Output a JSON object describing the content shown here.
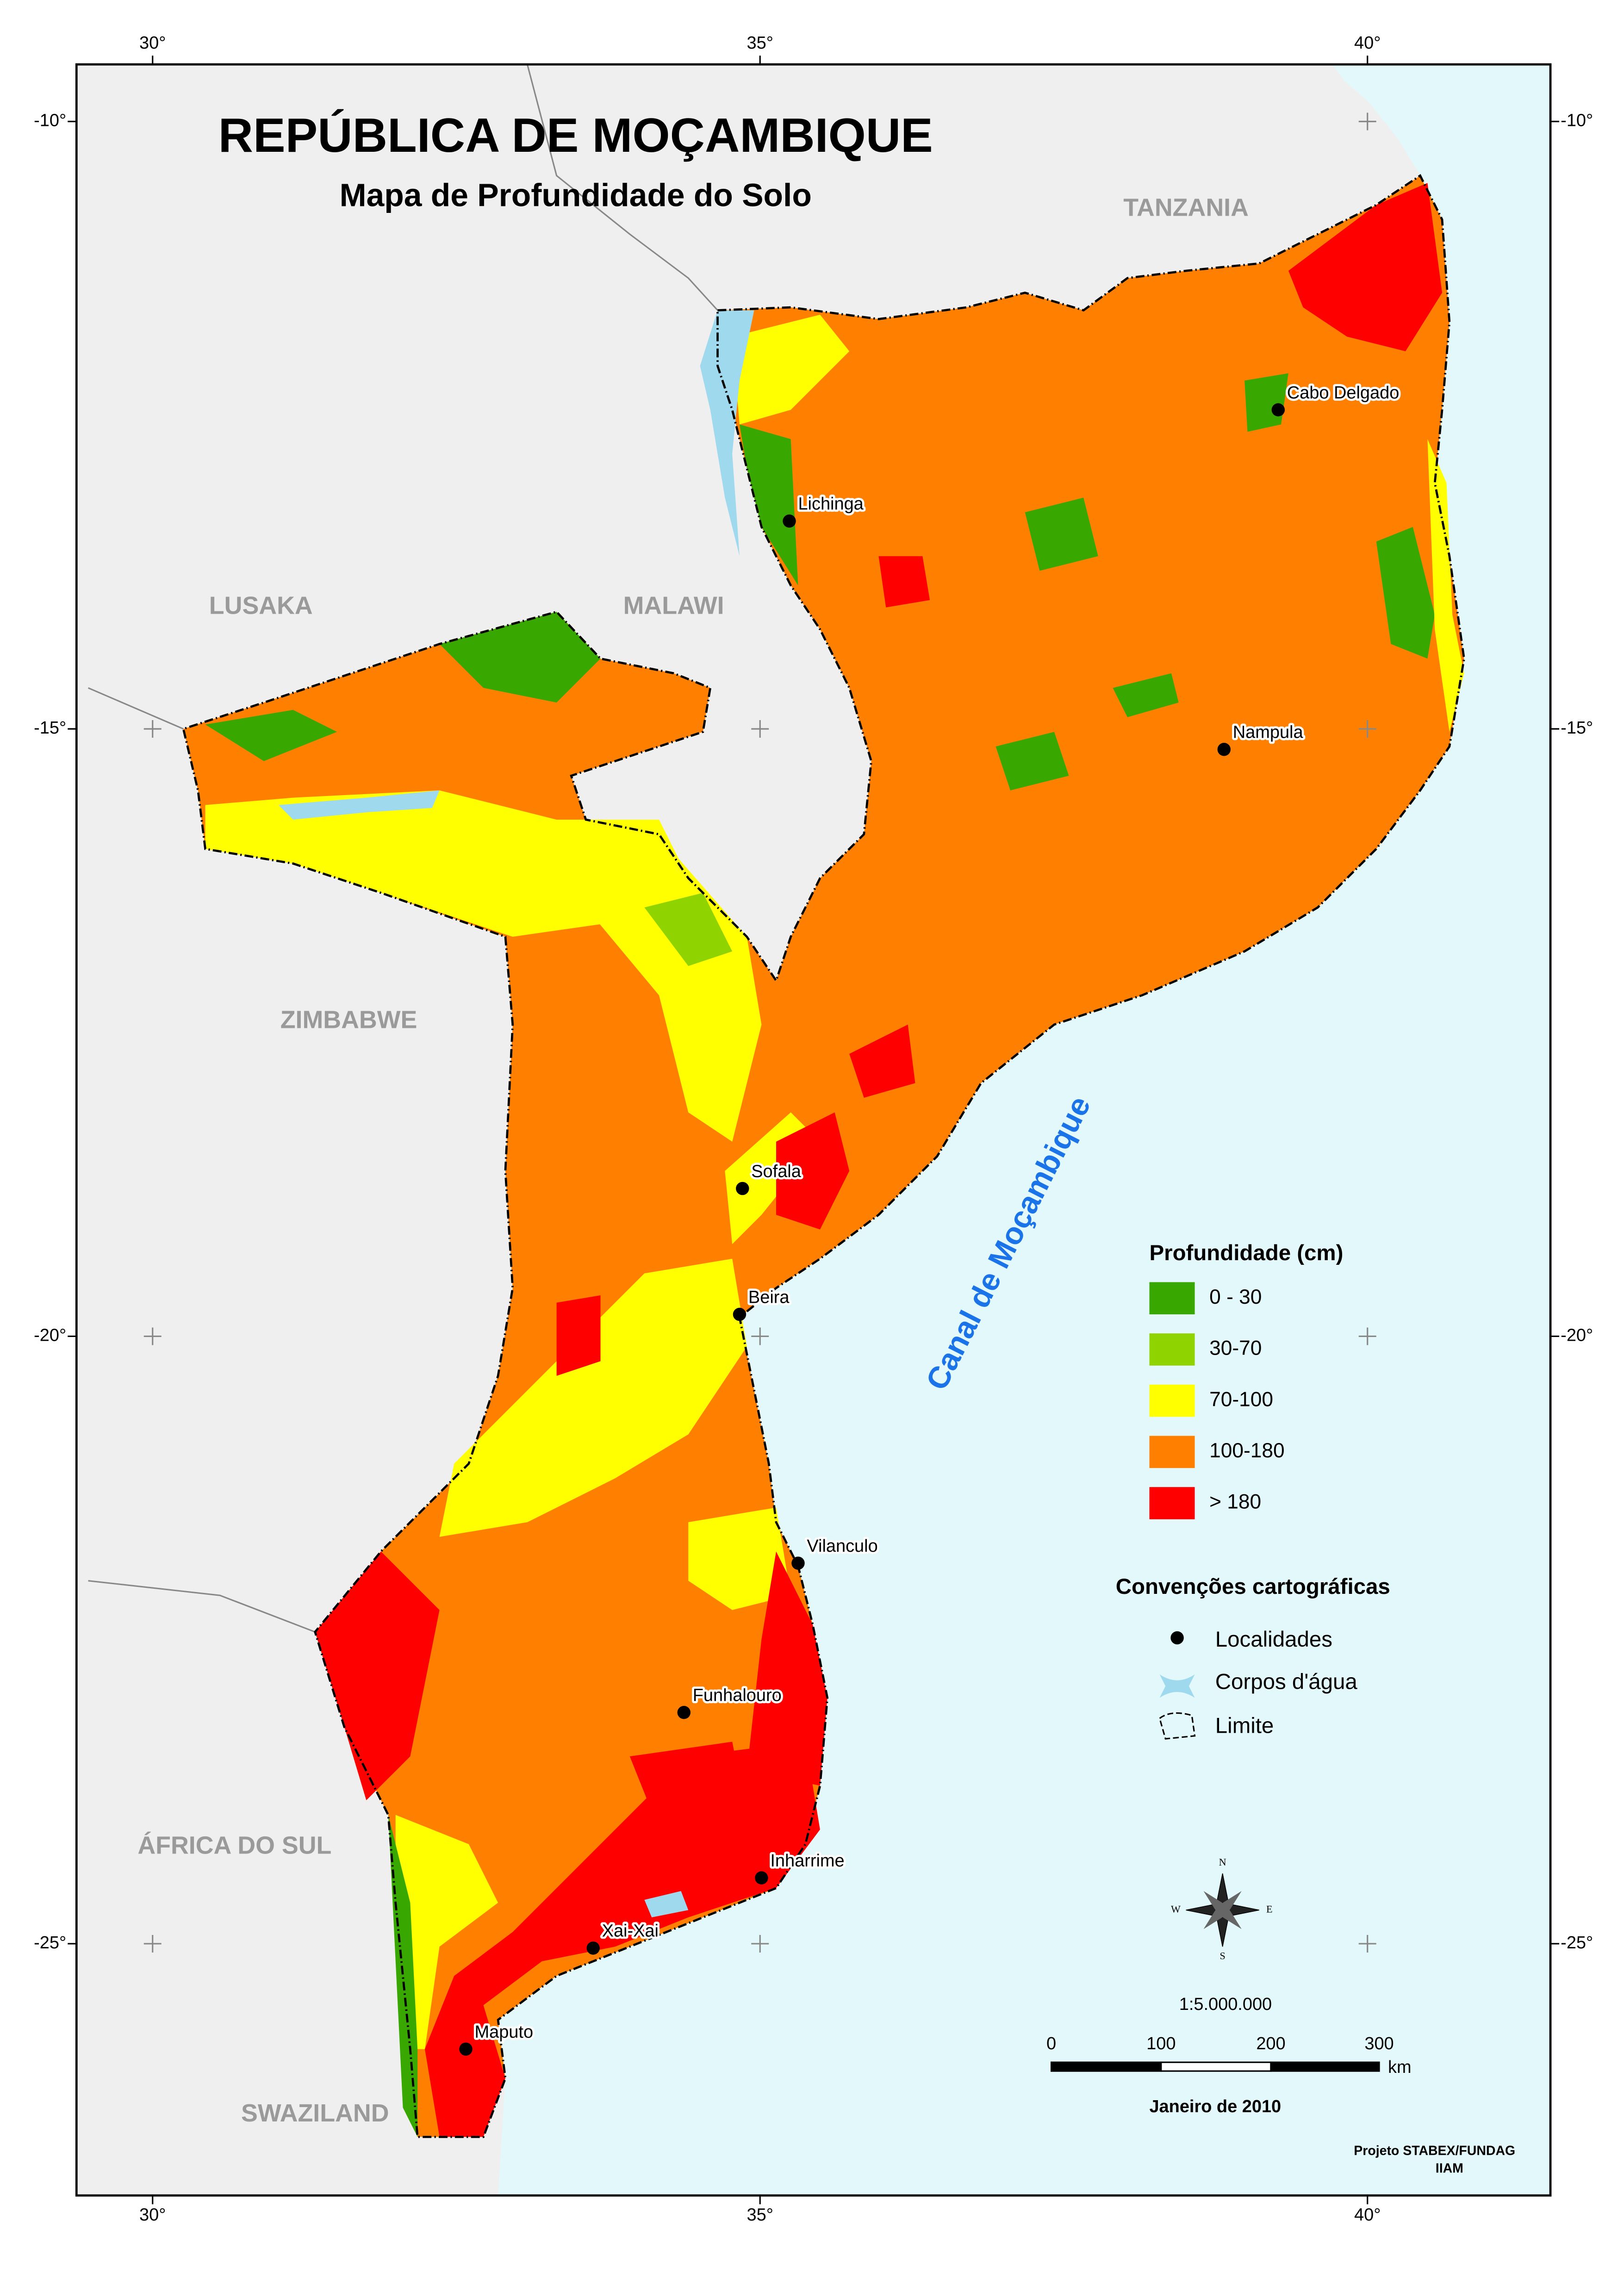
{
  "header": {
    "title": "REPÚBLICA DE MOÇAMBIQUE",
    "subtitle": "Mapa de Profundidade do Solo"
  },
  "graticule": {
    "longitudes": [
      "30°",
      "35°",
      "40°"
    ],
    "latitudes": [
      "-10°",
      "-15°",
      "-20°",
      "-25°"
    ]
  },
  "countries": [
    "TANZANIA",
    "MALAWI",
    "LUSAKA",
    "ZIMBABWE",
    "ÁFRICA DO SUL",
    "SWAZILAND"
  ],
  "sea_label": "Canal de Moçambique",
  "localities": [
    "Cabo Delgado",
    "Lichinga",
    "Nampula",
    "Sofala",
    "Beira",
    "Vilanculo",
    "Funhalouro",
    "Inharrime",
    "Xai-Xai",
    "Maputo"
  ],
  "legend": {
    "title": "Profundidade (cm)",
    "classes": [
      {
        "label": "0 - 30",
        "color": "#38a800"
      },
      {
        "label": "30-70",
        "color": "#8fd400"
      },
      {
        "label": "70-100",
        "color": "#ffff00"
      },
      {
        "label": "100-180",
        "color": "#ff8000"
      },
      {
        "label": "> 180",
        "color": "#ff0000"
      }
    ]
  },
  "conventions": {
    "title": "Convenções cartográficas",
    "items": [
      "Localidades",
      "Corpos d'água",
      "Limite"
    ]
  },
  "compass": [
    "N",
    "E",
    "S",
    "W"
  ],
  "scale": {
    "ratio": "1:5.000.000",
    "ticks": [
      "0",
      "100",
      "200",
      "300"
    ],
    "unit": "km"
  },
  "date": "Janeiro de 2010",
  "credits": [
    "Projeto STABEX/FUNDAG",
    "IIAM"
  ]
}
